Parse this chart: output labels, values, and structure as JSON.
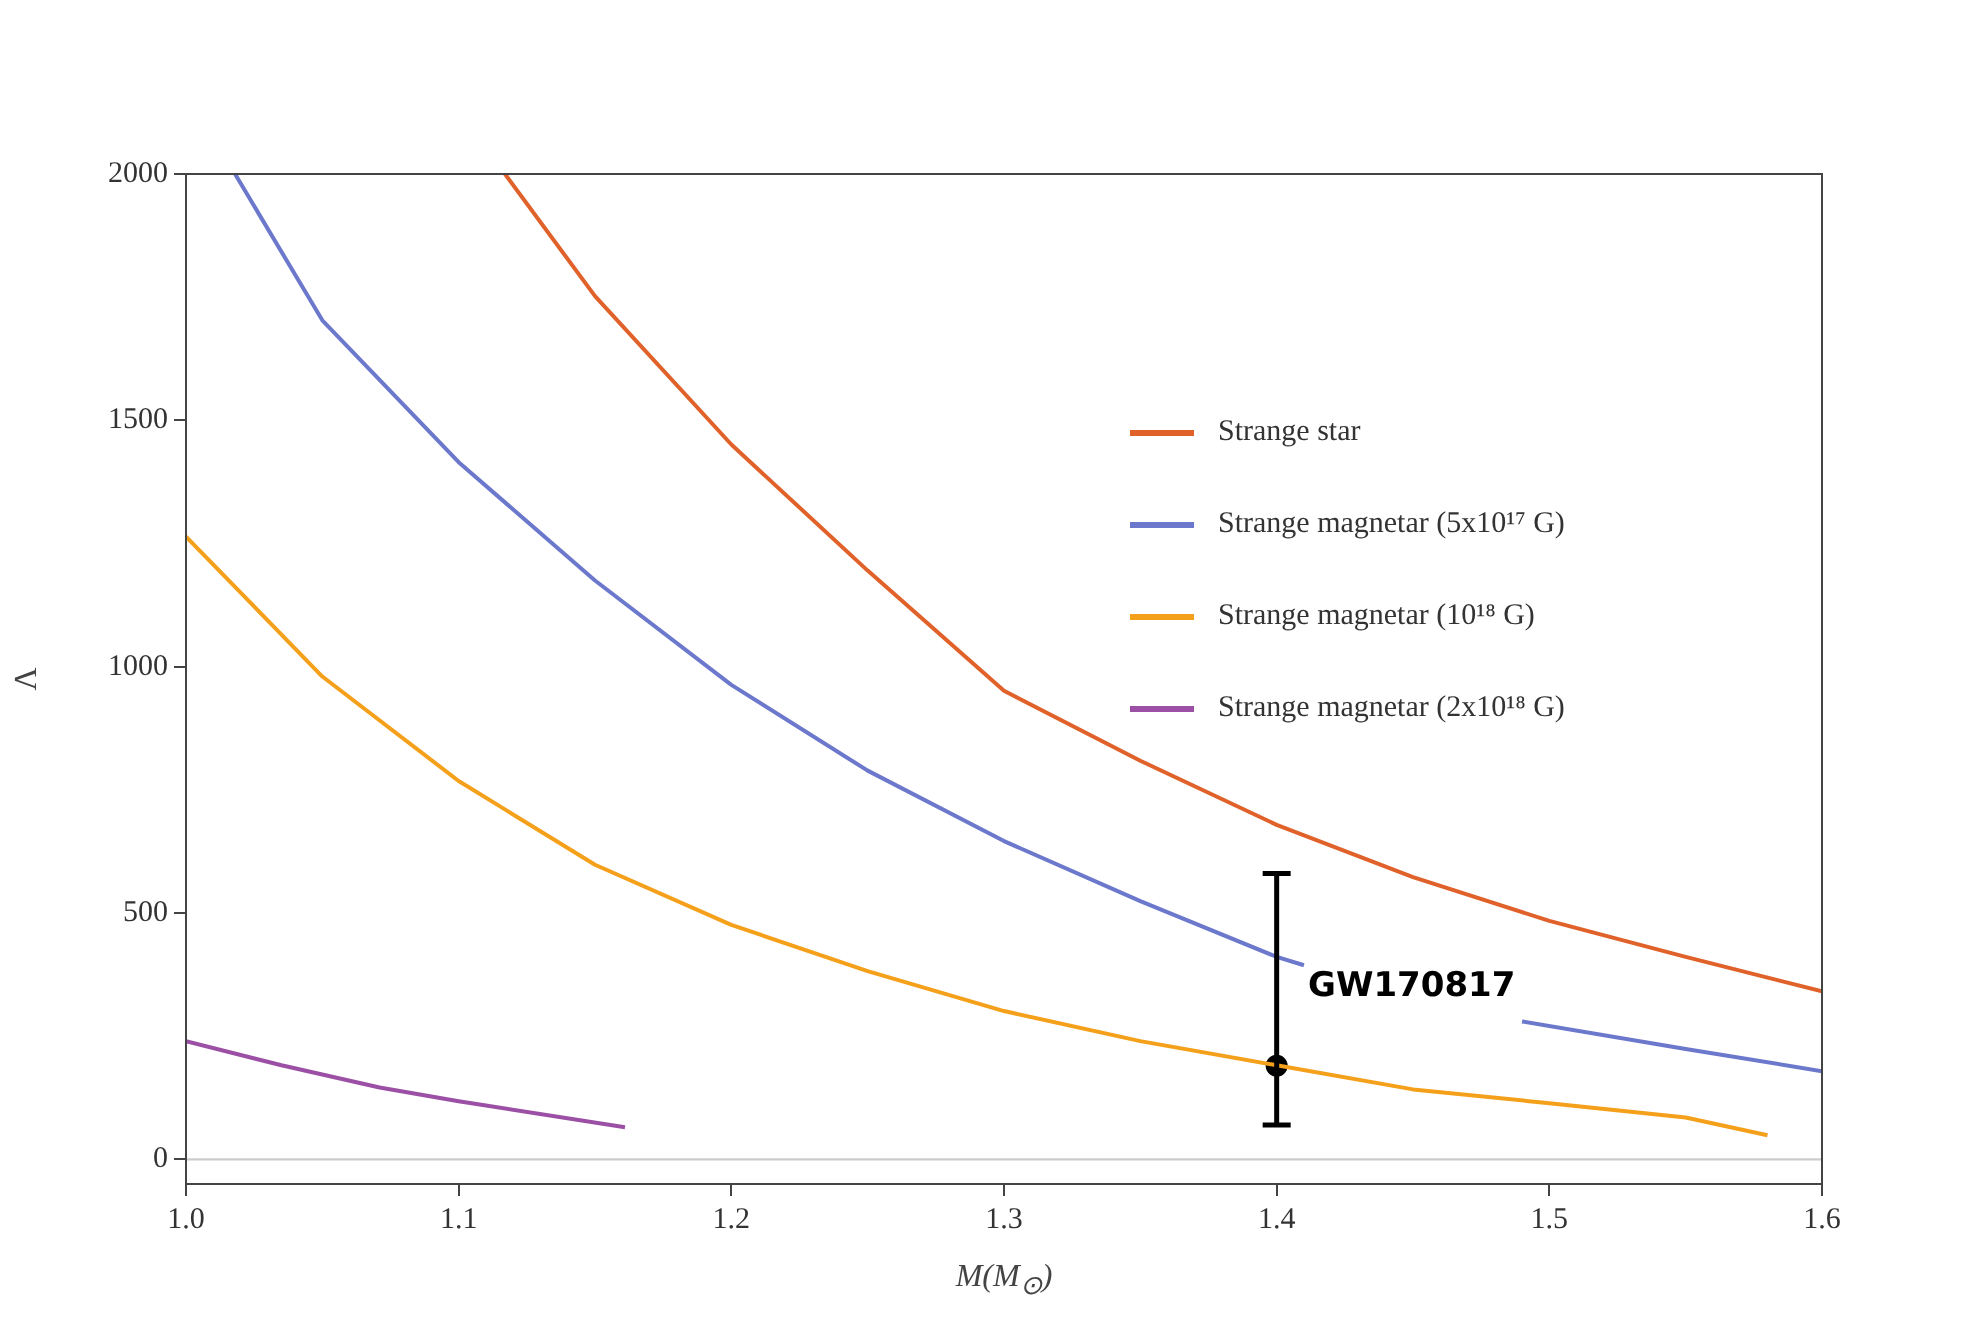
{
  "chart_data": {
    "type": "line",
    "xlabel": "M(M$_{⊙}$)",
    "ylabel": "Λ",
    "xlim": [
      1.0,
      1.6
    ],
    "ylim": [
      -50,
      2000
    ],
    "xticks": [
      {
        "value": 1.0,
        "label": "1.0"
      },
      {
        "value": 1.1,
        "label": "1.1"
      },
      {
        "value": 1.2,
        "label": "1.2"
      },
      {
        "value": 1.3,
        "label": "1.3"
      },
      {
        "value": 1.4,
        "label": "1.4"
      },
      {
        "value": 1.5,
        "label": "1.5"
      },
      {
        "value": 1.6,
        "label": "1.6"
      }
    ],
    "yticks": [
      0,
      500,
      1000,
      1500,
      2000
    ],
    "grid": false,
    "legend": "right",
    "marker": "none",
    "line_style": "solid",
    "ref_lines": [
      {
        "axis": "y",
        "value": 0,
        "color": "#cccccc"
      }
    ],
    "annotations": [
      "GW170817"
    ],
    "series": [
      {
        "name": "Strange star",
        "color": "#e0622a",
        "x": [
          1.117,
          1.15,
          1.2,
          1.25,
          1.3,
          1.35,
          1.4,
          1.45,
          1.5,
          1.55,
          1.6
        ],
        "values": [
          2000,
          1752,
          1451,
          1195,
          951,
          809,
          679,
          573,
          484,
          411,
          341
        ]
      },
      {
        "name": "Strange magnetar (5x10¹⁷ G)",
        "color": "#6b78cc",
        "x": [
          1.018,
          1.05,
          1.1,
          1.15,
          1.2,
          1.25,
          1.3,
          1.35,
          1.4,
          1.41,
          1.45,
          1.49,
          1.55,
          1.6
        ],
        "values": [
          2000,
          1703,
          1415,
          1175,
          963,
          789,
          646,
          524,
          411,
          394,
          null,
          280,
          224,
          179
        ]
      },
      {
        "name": "Strange magnetar (10¹⁸ G)",
        "color": "#f5a01a",
        "x": [
          1.0,
          1.05,
          1.1,
          1.15,
          1.2,
          1.25,
          1.3,
          1.35,
          1.4,
          1.45,
          1.5,
          1.55,
          1.58
        ],
        "values": [
          1264,
          980,
          768,
          598,
          476,
          382,
          301,
          240,
          191,
          142,
          114,
          85,
          49
        ]
      },
      {
        "name": "Strange magnetar (2x10¹⁸ G)",
        "color": "#9b4fa5",
        "x": [
          1.0,
          1.035,
          1.071,
          1.1,
          1.161
        ],
        "values": [
          240,
          191,
          146,
          118,
          65
        ]
      },
      {
        "type": "scatter",
        "color": "#000000",
        "marker": "circle",
        "x": [
          1.4
        ],
        "values": [
          190
        ],
        "errors": [
          [
            70,
            580
          ]
        ]
      }
    ]
  }
}
